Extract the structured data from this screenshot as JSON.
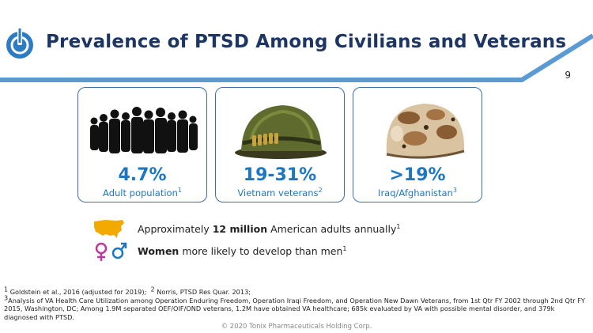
{
  "header": {
    "title": "Prevalence of PTSD Among Civilians and Veterans",
    "page_number": "9"
  },
  "cards": [
    {
      "stat": ">19%",
      "caption": "Iraq/Afghanistan",
      "footnote": "3",
      "image": "desert-helmet"
    },
    {
      "stat": "4.7%",
      "caption": "Adult population",
      "footnote": "1",
      "image": "crowd-silhouette"
    },
    {
      "stat": "19-31%",
      "caption": "Vietnam veterans",
      "footnote": "2",
      "image": "vietnam-helmet"
    }
  ],
  "bullets": [
    {
      "pre": "Approximately ",
      "bold": "12 million",
      "post": " American adults annually",
      "footnote": "1",
      "icon": "us-map-icon"
    },
    {
      "pre": "",
      "bold": "Women",
      "post": " more likely to develop than men",
      "footnote": "1",
      "icon": "gender-icon"
    }
  ],
  "footnotes": {
    "line1_sup1": "1",
    "line1_a": " Goldstein et al., 2016 (adjusted for 2019);",
    "line1_sup2": "2",
    "line1_b": " Norris, PTSD Res Quar. 2013;",
    "line2_sup": "3",
    "line2": "Analysis of VA Health Care Utilization among Operation Enduring Freedom, Operation Iraqi Freedom, and Operation New Dawn Veterans, from 1st Qtr FY 2002 through 2nd Qtr FY 2015, Washington, DC; Among 1.9M separated OEF/OIF/OND veterans, 1.2M have obtained VA healthcare; 685k evaluated by VA with possible mental disorder, and 379k diagnosed with PTSD."
  },
  "copyright": "© 2020 Tonix Pharmaceuticals Holding Corp.",
  "colors": {
    "title": "#1d3563",
    "accent": "#1c77c3",
    "card_border": "#3c6fa8",
    "map": "#f2a900",
    "female": "#c0399a",
    "male": "#1c77c3"
  }
}
